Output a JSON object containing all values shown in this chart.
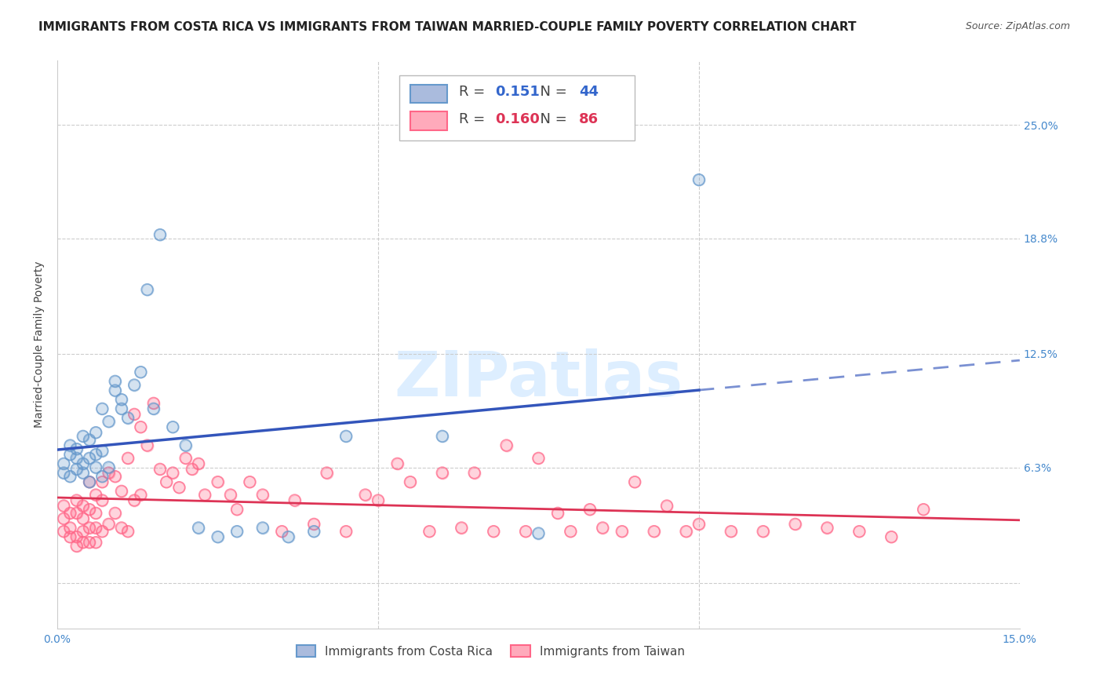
{
  "title": "IMMIGRANTS FROM COSTA RICA VS IMMIGRANTS FROM TAIWAN MARRIED-COUPLE FAMILY POVERTY CORRELATION CHART",
  "source": "Source: ZipAtlas.com",
  "ylabel": "Married-Couple Family Poverty",
  "xlim": [
    0.0,
    0.15
  ],
  "ylim": [
    -0.025,
    0.285
  ],
  "ytick_positions": [
    0.0,
    0.063,
    0.125,
    0.188,
    0.25
  ],
  "ytick_labels": [
    "",
    "6.3%",
    "12.5%",
    "18.8%",
    "25.0%"
  ],
  "background_color": "#ffffff",
  "costa_rica_color": "#6699cc",
  "taiwan_color": "#ff6688",
  "costa_rica_R": "0.151",
  "costa_rica_N": "44",
  "taiwan_R": "0.160",
  "taiwan_N": "86",
  "costa_rica_x": [
    0.001,
    0.001,
    0.002,
    0.002,
    0.002,
    0.003,
    0.003,
    0.003,
    0.004,
    0.004,
    0.004,
    0.005,
    0.005,
    0.005,
    0.006,
    0.006,
    0.006,
    0.007,
    0.007,
    0.007,
    0.008,
    0.008,
    0.009,
    0.009,
    0.01,
    0.01,
    0.011,
    0.012,
    0.013,
    0.014,
    0.015,
    0.016,
    0.018,
    0.02,
    0.022,
    0.025,
    0.028,
    0.032,
    0.036,
    0.04,
    0.045,
    0.06,
    0.075,
    0.1
  ],
  "costa_rica_y": [
    0.06,
    0.065,
    0.058,
    0.07,
    0.075,
    0.062,
    0.068,
    0.073,
    0.06,
    0.065,
    0.08,
    0.055,
    0.068,
    0.078,
    0.063,
    0.07,
    0.082,
    0.058,
    0.072,
    0.095,
    0.063,
    0.088,
    0.105,
    0.11,
    0.095,
    0.1,
    0.09,
    0.108,
    0.115,
    0.16,
    0.095,
    0.19,
    0.085,
    0.075,
    0.03,
    0.025,
    0.028,
    0.03,
    0.025,
    0.028,
    0.08,
    0.08,
    0.027,
    0.22
  ],
  "taiwan_x": [
    0.001,
    0.001,
    0.001,
    0.002,
    0.002,
    0.002,
    0.003,
    0.003,
    0.003,
    0.003,
    0.004,
    0.004,
    0.004,
    0.004,
    0.005,
    0.005,
    0.005,
    0.005,
    0.006,
    0.006,
    0.006,
    0.006,
    0.007,
    0.007,
    0.007,
    0.008,
    0.008,
    0.009,
    0.009,
    0.01,
    0.01,
    0.011,
    0.011,
    0.012,
    0.012,
    0.013,
    0.013,
    0.014,
    0.015,
    0.016,
    0.017,
    0.018,
    0.019,
    0.02,
    0.021,
    0.022,
    0.023,
    0.025,
    0.027,
    0.028,
    0.03,
    0.032,
    0.035,
    0.037,
    0.04,
    0.042,
    0.045,
    0.048,
    0.05,
    0.053,
    0.055,
    0.058,
    0.06,
    0.063,
    0.065,
    0.068,
    0.07,
    0.073,
    0.075,
    0.078,
    0.08,
    0.083,
    0.085,
    0.088,
    0.09,
    0.093,
    0.095,
    0.098,
    0.1,
    0.105,
    0.11,
    0.115,
    0.12,
    0.125,
    0.13,
    0.135
  ],
  "taiwan_y": [
    0.042,
    0.035,
    0.028,
    0.038,
    0.03,
    0.025,
    0.045,
    0.038,
    0.025,
    0.02,
    0.042,
    0.035,
    0.028,
    0.022,
    0.055,
    0.04,
    0.03,
    0.022,
    0.048,
    0.038,
    0.03,
    0.022,
    0.055,
    0.045,
    0.028,
    0.06,
    0.032,
    0.058,
    0.038,
    0.05,
    0.03,
    0.068,
    0.028,
    0.092,
    0.045,
    0.085,
    0.048,
    0.075,
    0.098,
    0.062,
    0.055,
    0.06,
    0.052,
    0.068,
    0.062,
    0.065,
    0.048,
    0.055,
    0.048,
    0.04,
    0.055,
    0.048,
    0.028,
    0.045,
    0.032,
    0.06,
    0.028,
    0.048,
    0.045,
    0.065,
    0.055,
    0.028,
    0.06,
    0.03,
    0.06,
    0.028,
    0.075,
    0.028,
    0.068,
    0.038,
    0.028,
    0.04,
    0.03,
    0.028,
    0.055,
    0.028,
    0.042,
    0.028,
    0.032,
    0.028,
    0.028,
    0.032,
    0.03,
    0.028,
    0.025,
    0.04
  ],
  "title_fontsize": 11,
  "source_fontsize": 9,
  "label_fontsize": 10,
  "tick_fontsize": 10,
  "legend_fontsize": 13
}
